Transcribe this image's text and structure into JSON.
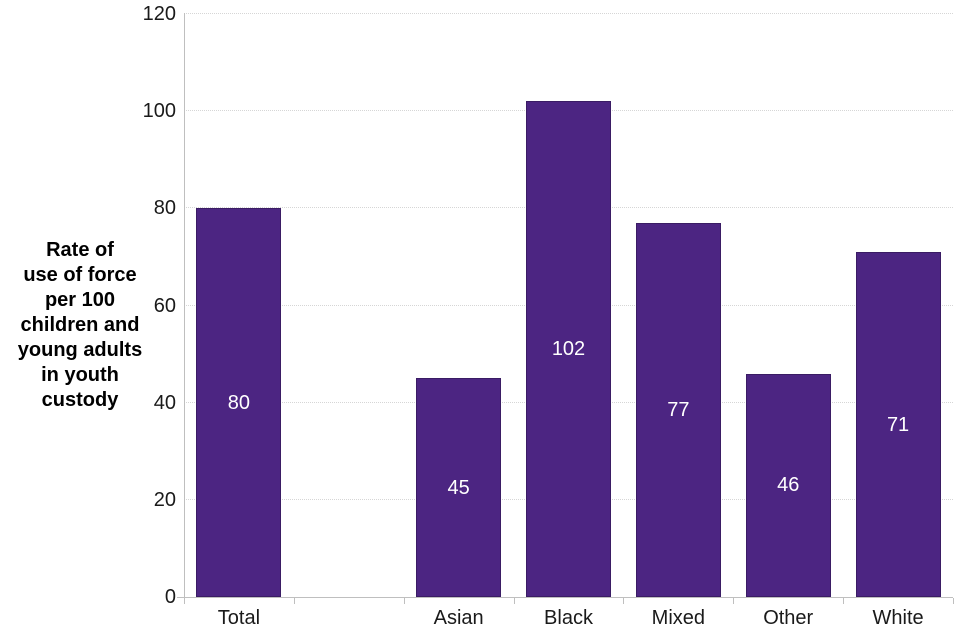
{
  "chart_data": {
    "type": "bar",
    "categories": [
      "Total",
      "",
      "Asian",
      "Black",
      "Mixed",
      "Other",
      "White"
    ],
    "values": [
      80,
      null,
      45,
      102,
      77,
      46,
      71
    ],
    "bar_labels": [
      "80",
      "",
      "45",
      "102",
      "77",
      "46",
      "71"
    ],
    "title": "",
    "xlabel": "",
    "ylabel": "Rate of use of force per 100 children and young adults in youth custody",
    "ylabel_lines": [
      "Rate of",
      "use of force",
      "per 100",
      "children and",
      "young adults",
      "in youth",
      "custody"
    ],
    "ylim": [
      0,
      120
    ],
    "yticks": [
      0,
      20,
      40,
      60,
      80,
      100,
      120
    ],
    "grid": true,
    "gridline_style": "dotted",
    "legend": false,
    "bar_label_position": "inside-center",
    "colors": {
      "bar_fill": "#4C2582",
      "bar_border": "#3A1C64",
      "bar_label_text": "#FFFFFF",
      "axis_line": "#BFBFBF",
      "gridline": "#D6D6D6",
      "tick_text": "#1A1A1A",
      "axis_title_text": "#000000",
      "background": "#FFFFFF"
    }
  }
}
